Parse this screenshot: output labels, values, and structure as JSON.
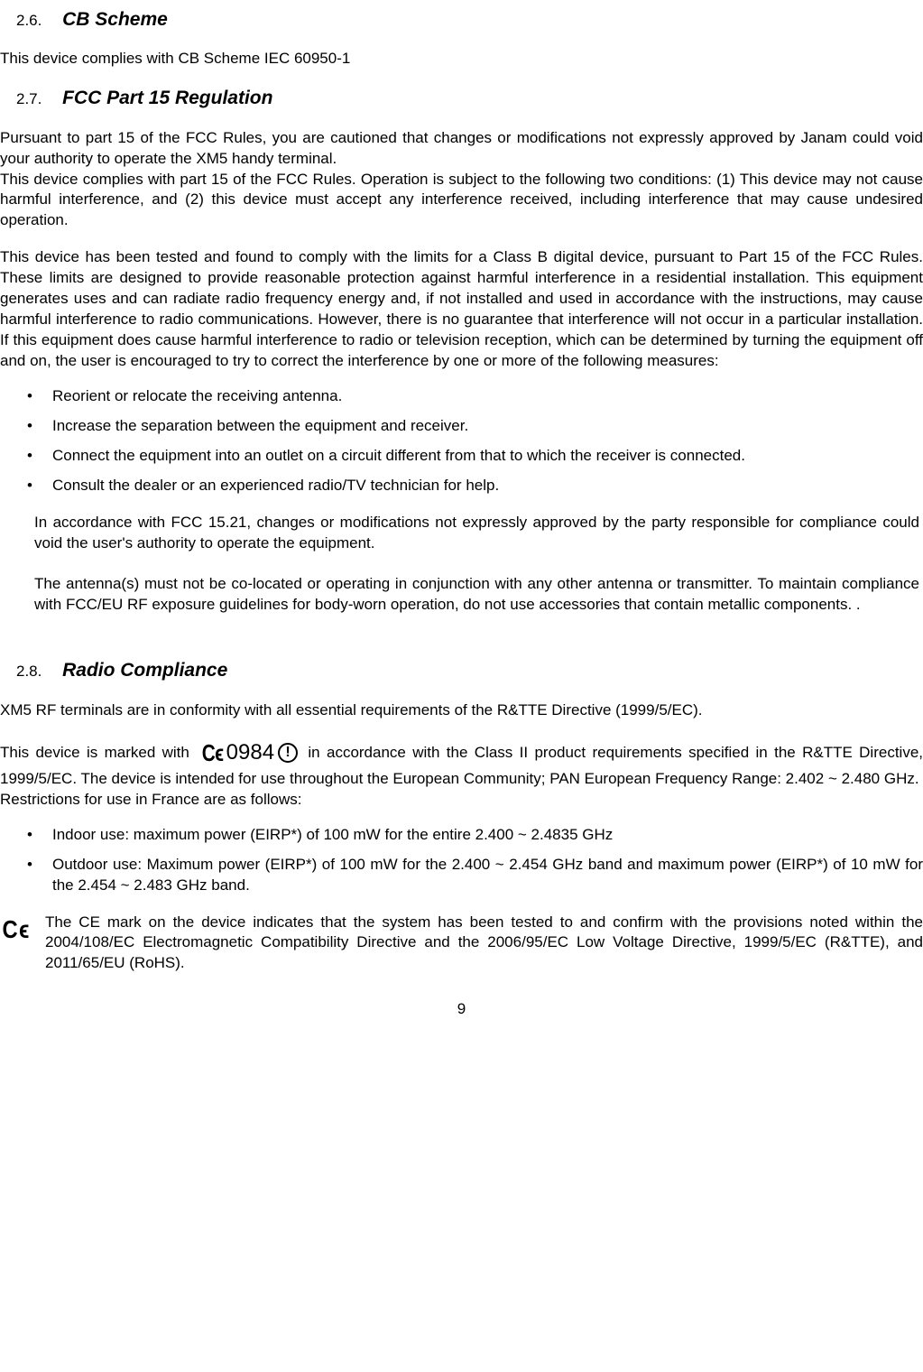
{
  "s26": {
    "num": "2.6.",
    "title": "CB Scheme",
    "p1": "This device complies with CB Scheme IEC 60950-1"
  },
  "s27": {
    "num": "2.7.",
    "title": "FCC Part 15 Regulation",
    "p1": "Pursuant to part 15 of the FCC Rules, you are cautioned that changes or modifications not expressly approved by Janam could void your authority to operate the XM5 handy terminal.",
    "p2": "This device complies with part 15 of the FCC Rules. Operation is subject to the following two conditions: (1) This device may not cause harmful interference, and (2) this device must accept any interference received, including interference that may cause undesired operation.",
    "p3": "This device has been tested and found to comply with the limits for a Class B digital device, pursuant to Part 15 of the FCC Rules. These limits are designed to provide reasonable protection against harmful interference in a residential installation. This equipment generates uses and can radiate radio frequency energy and, if not installed and used in accordance with the instructions, may cause harmful interference to radio communications. However, there is no guarantee that interference will not occur in a particular installation. If this equipment does cause harmful interference to radio or television reception, which can be determined by turning the equipment off and on, the user is encouraged to try to correct the interference by one or more of the following measures:",
    "bullets": [
      "Reorient or relocate the receiving antenna.",
      "Increase the separation between the equipment and receiver.",
      "Connect the equipment into an outlet on a circuit different from that to which the receiver is connected.",
      "Consult the dealer or an experienced radio/TV technician for help."
    ],
    "p4": "In accordance with FCC 15.21, changes or modifications not expressly approved by the party responsible for compliance could void the user's authority to operate the equipment.",
    "p5": "The antenna(s) must not be co-located or operating in conjunction with any other antenna or transmitter. To maintain compliance with FCC/EU RF exposure guidelines for body-worn operation, do not use accessories that contain metallic components. ."
  },
  "s28": {
    "num": "2.8.",
    "title": "Radio Compliance",
    "p1": "XM5 RF terminals are in conformity with all essential requirements of the R&TTE Directive (1999/5/EC).",
    "p2a": "This device is marked with ",
    "mark_num": "0984",
    "p2b": "in accordance with the Class II product requirements specified in the R&TTE Directive, 1999/5/EC. The device is intended for use throughout the European Community; PAN European Frequency Range: 2.402 ~ 2.480 GHz.",
    "p3": "Restrictions for use in France are as follows:",
    "bullets": [
      "Indoor use: maximum power (EIRP*) of 100 mW for the entire 2.400 ~ 2.4835 GHz",
      "Outdoor use: Maximum power (EIRP*) of 100 mW for the 2.400 ~ 2.454 GHz band and maximum power (EIRP*) of 10 mW for the 2.454 ~ 2.483 GHz band."
    ],
    "p4": "The CE mark on the device indicates that the system has been tested to and confirm with the provisions noted within the 2004/108/EC Electromagnetic Compatibility Directive and the 2006/95/EC Low Voltage Directive, 1999/5/EC (R&TTE), and 2011/65/EU (RoHS)."
  },
  "page_number": "9",
  "ce_label": "C ϵ"
}
